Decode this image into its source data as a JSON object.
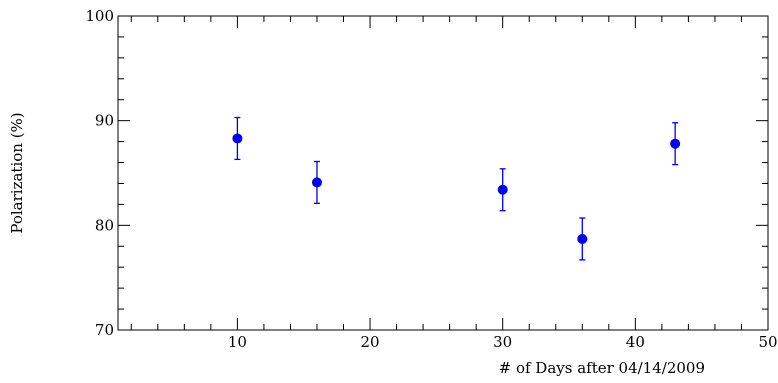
{
  "chart_data": {
    "type": "scatter",
    "title": "",
    "xlabel": "# of Days after 04/14/2009",
    "ylabel": "Polarization (%)",
    "xlim": [
      1,
      50
    ],
    "ylim": [
      70,
      100
    ],
    "x_ticks": [
      10,
      20,
      30,
      40,
      50
    ],
    "y_ticks": [
      70,
      80,
      90,
      100
    ],
    "x_minor_step": 2,
    "y_minor_step": 2,
    "grid": false,
    "marker_color": "#0000ee",
    "points": [
      {
        "x": 10,
        "y": 88.3,
        "err": 2.0
      },
      {
        "x": 16,
        "y": 84.1,
        "err": 2.0
      },
      {
        "x": 30,
        "y": 83.4,
        "err": 2.0
      },
      {
        "x": 36,
        "y": 78.7,
        "err": 2.0
      },
      {
        "x": 43,
        "y": 87.8,
        "err": 2.0
      }
    ]
  }
}
